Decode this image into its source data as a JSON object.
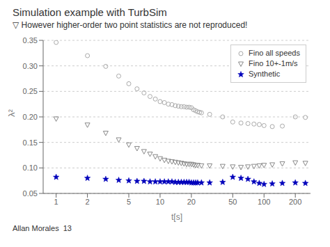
{
  "chart_data": {
    "type": "scatter",
    "title": "Simulation example with TurbSim",
    "subtitle": "▽ However higher-order two point statistics are not reproduced!",
    "annotations": [
      "Allan Morales  13"
    ],
    "xlabel": "t[s]",
    "ylabel": "λ²",
    "log": "x",
    "xlim": [
      0.75,
      280
    ],
    "xticks": [
      1,
      2,
      5,
      10,
      20,
      50,
      100,
      200
    ],
    "ylim": [
      0.05,
      0.35
    ],
    "yticks": [
      0.05,
      {
        "value": 0.1,
        "label": "0.10"
      },
      0.15,
      {
        "value": 0.2,
        "label": "0.20"
      },
      0.25,
      {
        "value": 0.3,
        "label": "0.30"
      },
      0.35
    ],
    "grid": true,
    "legend": "upper right",
    "series": [
      {
        "name": "Fino all speeds",
        "color": "#aaaaaa",
        "marker": "circle",
        "x": [
          1,
          2,
          3,
          4,
          5,
          6,
          7,
          8,
          9,
          10,
          11,
          12,
          13,
          14,
          15,
          16,
          17,
          18,
          19,
          20,
          21,
          22,
          23,
          24,
          25,
          30,
          40,
          50,
          60,
          70,
          80,
          90,
          100,
          120,
          150,
          200,
          250
        ],
        "values": [
          0.346,
          0.32,
          0.299,
          0.28,
          0.265,
          0.255,
          0.247,
          0.24,
          0.235,
          0.23,
          0.228,
          0.225,
          0.224,
          0.222,
          0.221,
          0.22,
          0.22,
          0.219,
          0.219,
          0.218,
          0.214,
          0.212,
          0.21,
          0.209,
          0.208,
          0.205,
          0.2,
          0.19,
          0.188,
          0.187,
          0.186,
          0.185,
          0.183,
          0.181,
          0.182,
          0.2,
          0.199
        ]
      },
      {
        "name": "Fino 10+-1m/s",
        "color": "#888888",
        "marker": "triangle_down",
        "x": [
          1,
          2,
          3,
          4,
          5,
          6,
          7,
          8,
          9,
          10,
          11,
          12,
          13,
          14,
          15,
          16,
          17,
          18,
          19,
          20,
          21,
          22,
          23,
          25,
          30,
          40,
          50,
          60,
          70,
          80,
          90,
          100,
          120,
          150,
          200,
          250
        ],
        "values": [
          0.196,
          0.184,
          0.168,
          0.155,
          0.145,
          0.138,
          0.132,
          0.127,
          0.122,
          0.118,
          0.115,
          0.113,
          0.112,
          0.111,
          0.11,
          0.109,
          0.108,
          0.107,
          0.107,
          0.107,
          0.106,
          0.105,
          0.105,
          0.104,
          0.104,
          0.103,
          0.102,
          0.101,
          0.102,
          0.103,
          0.104,
          0.105,
          0.106,
          0.108,
          0.11,
          0.109
        ]
      },
      {
        "name": "Synthetic",
        "color": "#0000bb",
        "marker": "star",
        "x": [
          1,
          2,
          3,
          4,
          5,
          6,
          7,
          8,
          9,
          10,
          11,
          12,
          13,
          14,
          15,
          16,
          17,
          18,
          19,
          20,
          21,
          22,
          23,
          25,
          30,
          40,
          50,
          60,
          70,
          80,
          90,
          100,
          120,
          150,
          200,
          250
        ],
        "values": [
          0.082,
          0.08,
          0.078,
          0.076,
          0.075,
          0.074,
          0.074,
          0.073,
          0.073,
          0.073,
          0.073,
          0.073,
          0.073,
          0.072,
          0.072,
          0.072,
          0.072,
          0.072,
          0.072,
          0.071,
          0.071,
          0.071,
          0.071,
          0.071,
          0.071,
          0.072,
          0.082,
          0.08,
          0.078,
          0.073,
          0.07,
          0.068,
          0.069,
          0.07,
          0.071,
          0.07
        ]
      }
    ]
  }
}
